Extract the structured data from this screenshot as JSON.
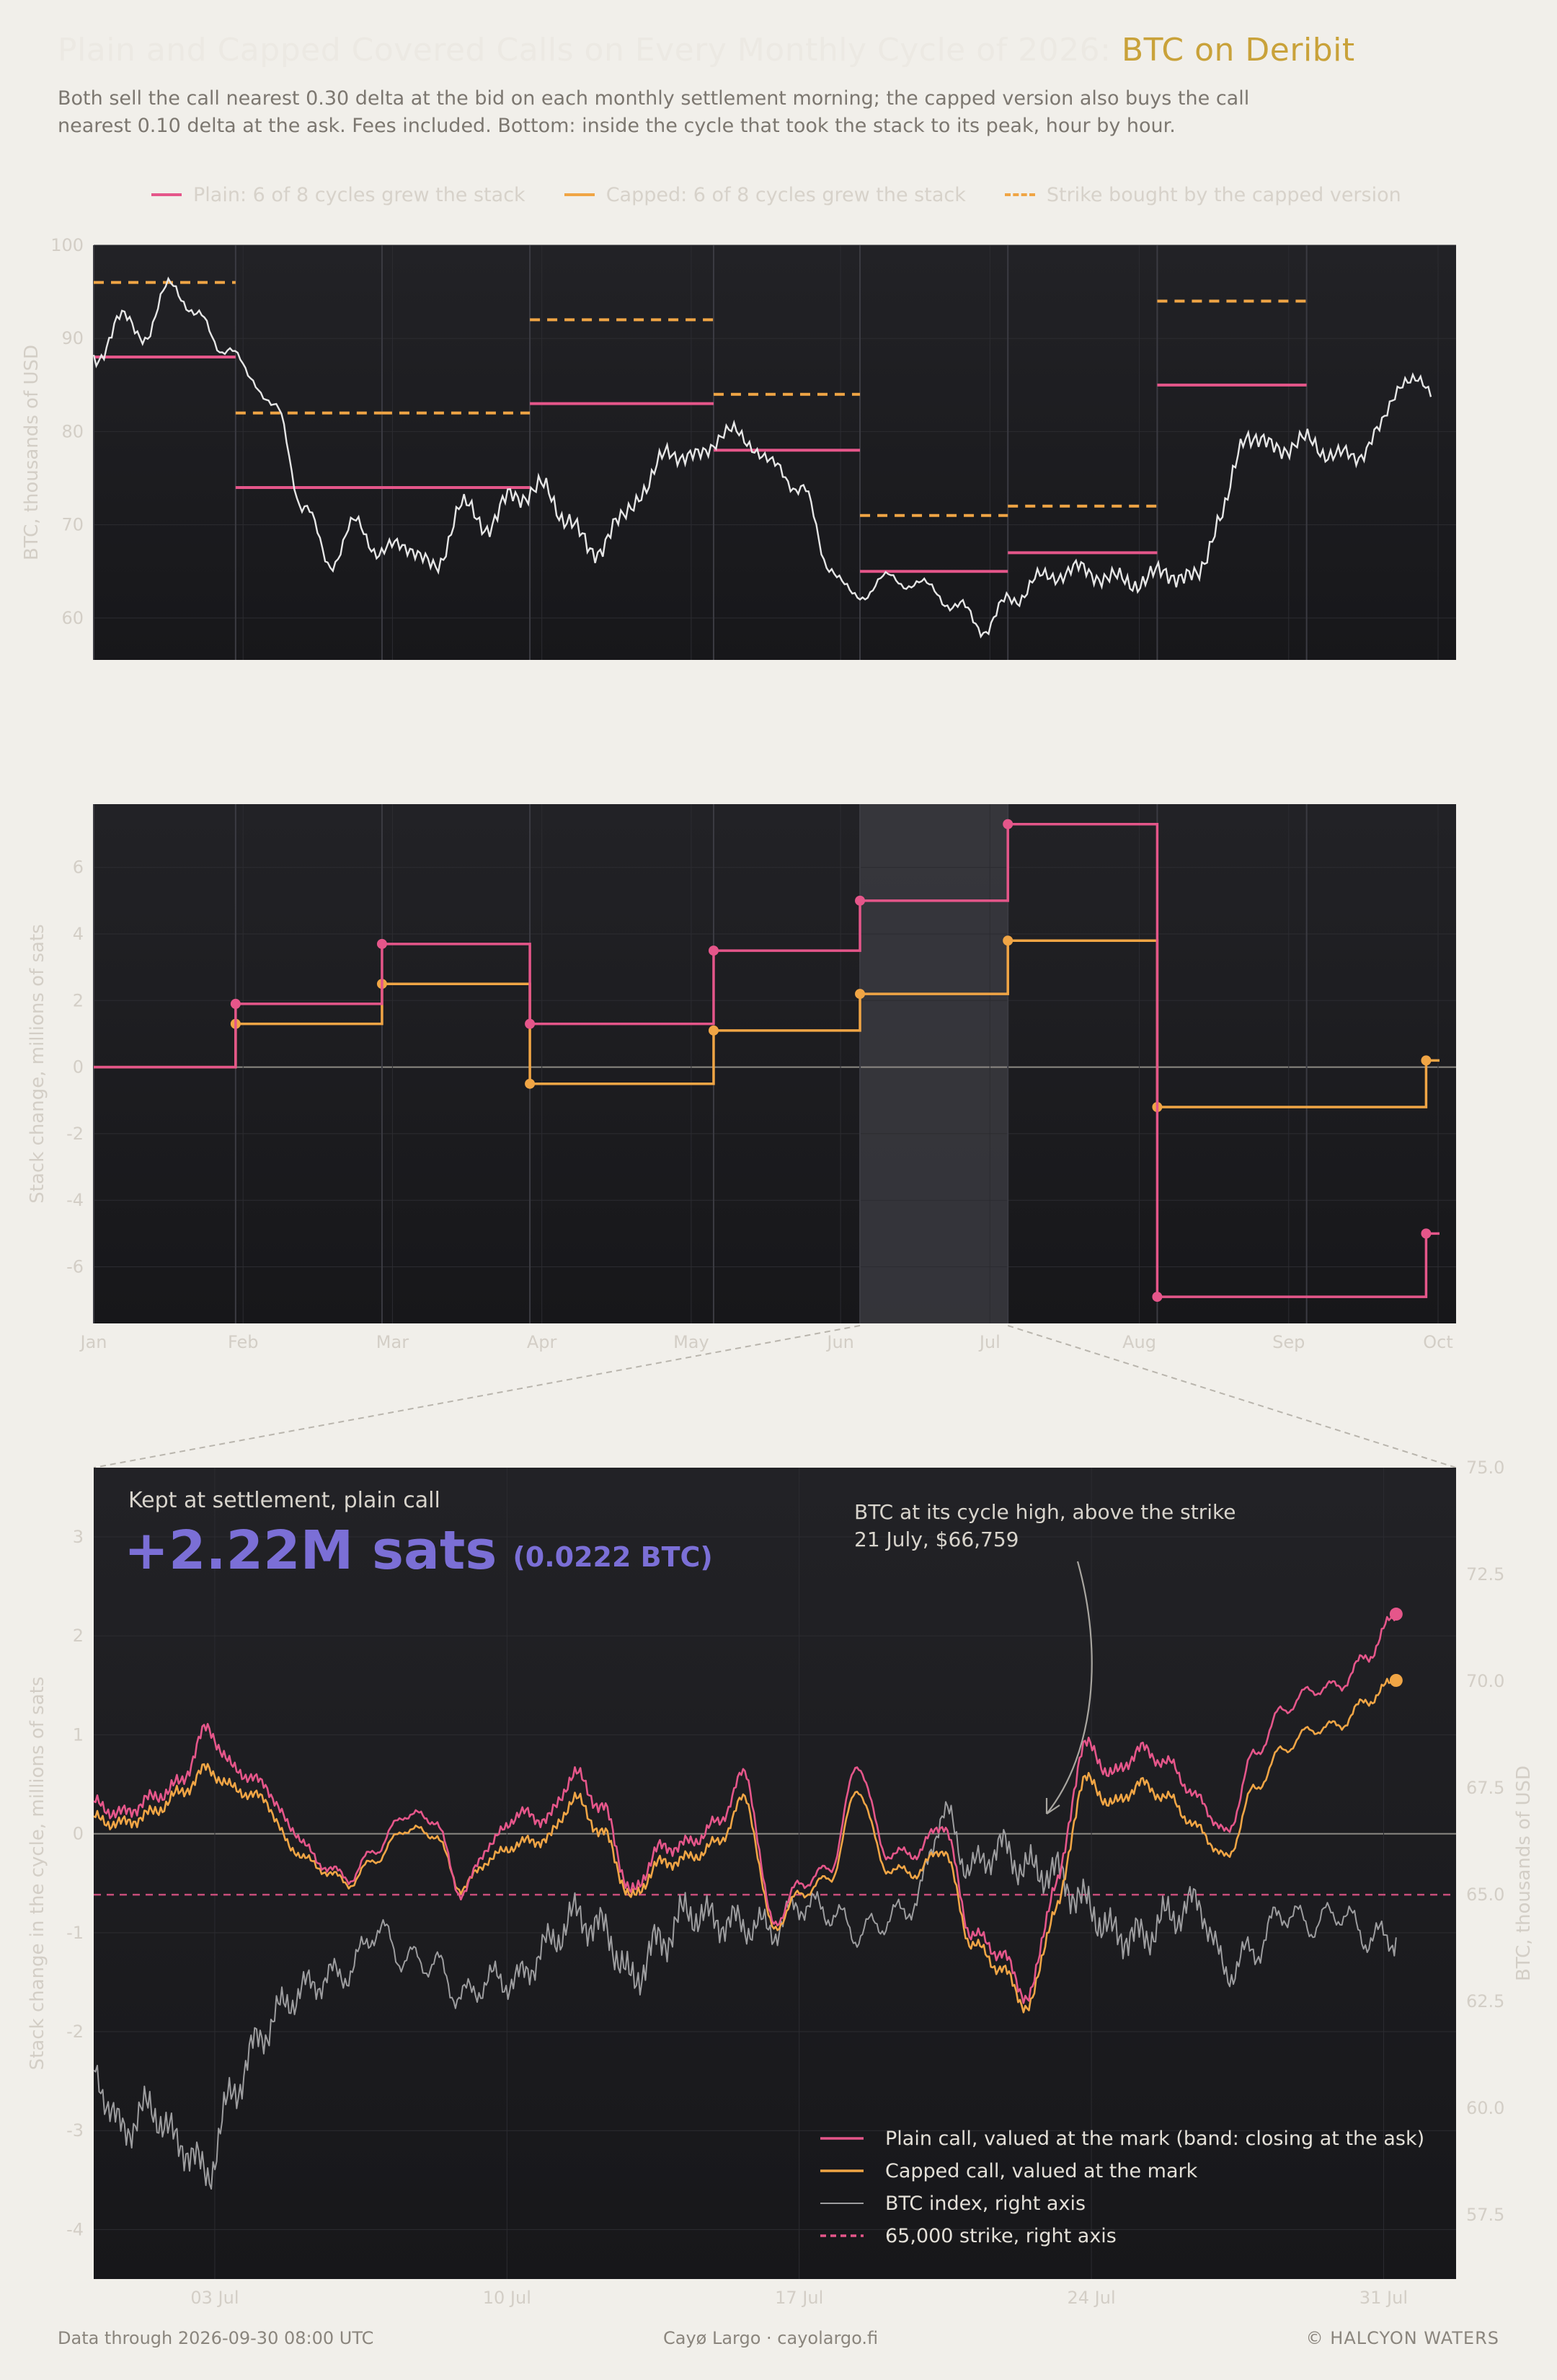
{
  "title_main": "Plain and Capped Covered Calls on Every Monthly Cycle of 2026:",
  "title_highlight": "BTC on Deribit",
  "subtitle": "Both sell the call nearest 0.30 delta at the bid on each monthly settlement morning; the capped version also buys the call nearest 0.10 delta at the ask. Fees included. Bottom: inside the cycle that took the stack to its peak, hour by hour.",
  "legend": {
    "plain": "Plain: 6 of 8 cycles grew the stack",
    "capped": "Capped: 6 of 8 cycles grew the stack",
    "strike": "Strike bought by the capped version"
  },
  "colors": {
    "plain": "#e5568a",
    "capped": "#f0a545",
    "btc": "#e6e6e6",
    "panel_bg": "#1e1e22",
    "kpi": "#7b6fd6"
  },
  "footer": {
    "left": "Data through 2026-09-30 08:00 UTC",
    "mid": "Cayø Largo  ·  cayolargo.fi",
    "right": "© HALCYON WATERS"
  },
  "chart_data": [
    {
      "type": "line",
      "ylabel": "BTC, thousands of USD",
      "ylim": [
        55.5,
        100
      ],
      "yticks": [
        60,
        70,
        80,
        90,
        100
      ],
      "btc_weekly": [
        87.5,
        92,
        90.5,
        96,
        92,
        89,
        86,
        82,
        72,
        66,
        70,
        67,
        68,
        65,
        72,
        70,
        73,
        74,
        71,
        67,
        70,
        74,
        78,
        77,
        80,
        79,
        76,
        74,
        66,
        62,
        64,
        64,
        63,
        61,
        59,
        62,
        64,
        65,
        65,
        64,
        64,
        65,
        64,
        71,
        80,
        78,
        79,
        78,
        77,
        80,
        86,
        84
      ],
      "cycle_bounds_month": [
        1.0,
        1.95,
        2.93,
        3.92,
        5.15,
        6.13,
        7.12,
        8.12,
        9.12
      ],
      "plain_strikes": [
        88,
        74,
        74,
        83,
        78,
        65,
        67,
        85
      ],
      "capped_strikes": [
        96,
        82,
        82,
        92,
        84,
        71,
        72,
        94
      ]
    },
    {
      "type": "line",
      "ylabel": "Stack change, millions of sats",
      "ylim": [
        -7.7,
        7.9
      ],
      "yticks": [
        -6,
        -4,
        -2,
        0,
        2,
        4,
        6
      ],
      "x_tick_labels": [
        "Jan",
        "Feb",
        "Mar",
        "Apr",
        "May",
        "Jun",
        "Jul",
        "Aug",
        "Sep",
        "Oct"
      ],
      "plain_levels": [
        0,
        1.9,
        3.7,
        1.3,
        3.5,
        5.0,
        7.3,
        -6.9,
        -5.0
      ],
      "capped_levels": [
        0,
        1.3,
        2.5,
        -0.5,
        1.1,
        2.2,
        3.8,
        -1.2,
        0.2
      ],
      "highlight_cycle": "Jul"
    },
    {
      "type": "line",
      "ylabel": "Stack change in the cycle, millions of sats",
      "y2label": "BTC, thousands of USD",
      "ylim": [
        -4.5,
        3.7
      ],
      "yticks": [
        -4,
        -3,
        -2,
        -1,
        0,
        1,
        2,
        3
      ],
      "y2lim": [
        56,
        75
      ],
      "y2ticks": [
        "57.5",
        "60.0",
        "62.5",
        "65.0",
        "67.5",
        "70.0",
        "72.5",
        "75.0"
      ],
      "x_tick_labels": [
        "03 Jul",
        "10 Jul",
        "17 Jul",
        "24 Jul",
        "31 Jul"
      ],
      "strike": 65.0,
      "plain_final": 2.22,
      "capped_final": 1.55,
      "btc_daily": [
        60.8,
        59.5,
        60.0,
        59.2,
        58.5,
        60.5,
        61.8,
        62.6,
        63.0,
        63.2,
        64.2,
        63.5,
        63.4,
        62.6,
        63.0,
        63.0,
        63.8,
        64.5,
        64.2,
        63.0,
        63.9,
        64.6,
        64.4,
        64.3,
        64.2,
        64.8,
        64.6,
        64.1,
        64.4,
        64.8,
        66.9,
        65.6,
        66.1,
        65.6,
        65.5,
        64.8,
        64.1,
        64.0,
        64.5,
        64.8,
        63.2,
        63.7,
        64.6,
        64.3,
        64.6,
        64.0,
        64.0
      ],
      "plain_daily": [
        0.3,
        0.2,
        0.35,
        0.5,
        1.05,
        0.65,
        0.5,
        0.05,
        -0.3,
        -0.45,
        -0.15,
        0.2,
        0.15,
        -0.6,
        -0.1,
        0.2,
        0.15,
        0.6,
        0.25,
        -0.6,
        -0.15,
        -0.1,
        0.1,
        0.6,
        -0.9,
        -0.5,
        -0.35,
        0.7,
        -0.2,
        -0.2,
        0.1,
        -1.0,
        -1.2,
        -1.65,
        -0.5,
        0.9,
        0.6,
        0.85,
        0.7,
        0.35,
        0.0,
        0.8,
        1.25,
        1.45,
        1.5,
        1.8,
        2.22
      ],
      "capped_daily": [
        0.15,
        0.1,
        0.2,
        0.4,
        0.65,
        0.45,
        0.35,
        -0.15,
        -0.35,
        -0.5,
        -0.25,
        0.05,
        0.0,
        -0.55,
        -0.25,
        -0.1,
        -0.05,
        0.35,
        0.0,
        -0.65,
        -0.3,
        -0.25,
        -0.1,
        0.35,
        -0.95,
        -0.6,
        -0.45,
        0.45,
        -0.35,
        -0.4,
        -0.15,
        -1.1,
        -1.35,
        -1.75,
        -0.75,
        0.55,
        0.3,
        0.5,
        0.35,
        0.05,
        -0.25,
        0.45,
        0.85,
        1.05,
        1.1,
        1.35,
        1.55
      ]
    }
  ],
  "kpi": {
    "label": "Kept at settlement, plain call",
    "value": "+2.22M sats",
    "sub": "(0.0222 BTC)"
  },
  "annotation": {
    "line1": "BTC at its cycle high, above the strike",
    "line2": "21 July, $66,759"
  },
  "legend_bottom": [
    {
      "key": "plain",
      "label": "Plain call, valued at the mark (band: closing at the ask)"
    },
    {
      "key": "capped",
      "label": "Capped call, valued at the mark"
    },
    {
      "key": "btc",
      "label": "BTC index, right axis"
    },
    {
      "key": "strike",
      "label": "65,000 strike, right axis"
    }
  ]
}
